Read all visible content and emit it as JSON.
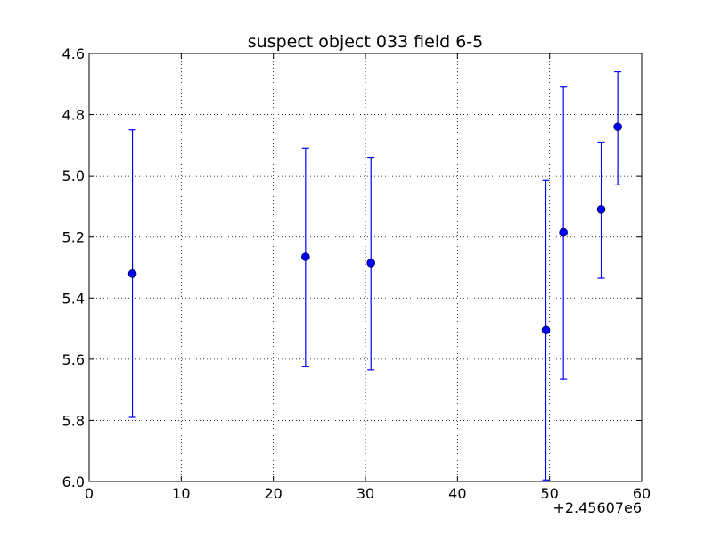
{
  "chart_data": {
    "type": "scatter",
    "title": "suspect object 033 field 6-5",
    "xlabel": "",
    "ylabel": "",
    "x_offset_label": "+2.45607e6",
    "xlim": [
      0,
      60
    ],
    "ylim": [
      4.6,
      6.0
    ],
    "y_inverted": true,
    "grid": true,
    "x_ticks": [
      "0",
      "10",
      "20",
      "30",
      "40",
      "50",
      "60"
    ],
    "y_ticks": [
      "4.6",
      "4.8",
      "5.0",
      "5.2",
      "5.4",
      "5.6",
      "5.8",
      "6.0"
    ],
    "marker_color": "#0000ff",
    "series": [
      {
        "points": [
          {
            "x": 4.7,
            "y": 5.32,
            "err_low": 4.85,
            "err_high": 5.79
          },
          {
            "x": 23.5,
            "y": 5.265,
            "err_low": 4.91,
            "err_high": 5.625
          },
          {
            "x": 30.6,
            "y": 5.285,
            "err_low": 4.94,
            "err_high": 5.635
          },
          {
            "x": 49.6,
            "y": 5.505,
            "err_low": 5.015,
            "err_high": 5.995
          },
          {
            "x": 51.5,
            "y": 5.185,
            "err_low": 4.71,
            "err_high": 5.665
          },
          {
            "x": 55.6,
            "y": 5.11,
            "err_low": 4.89,
            "err_high": 5.335
          },
          {
            "x": 57.4,
            "y": 4.84,
            "err_low": 4.66,
            "err_high": 5.03
          }
        ]
      }
    ]
  }
}
